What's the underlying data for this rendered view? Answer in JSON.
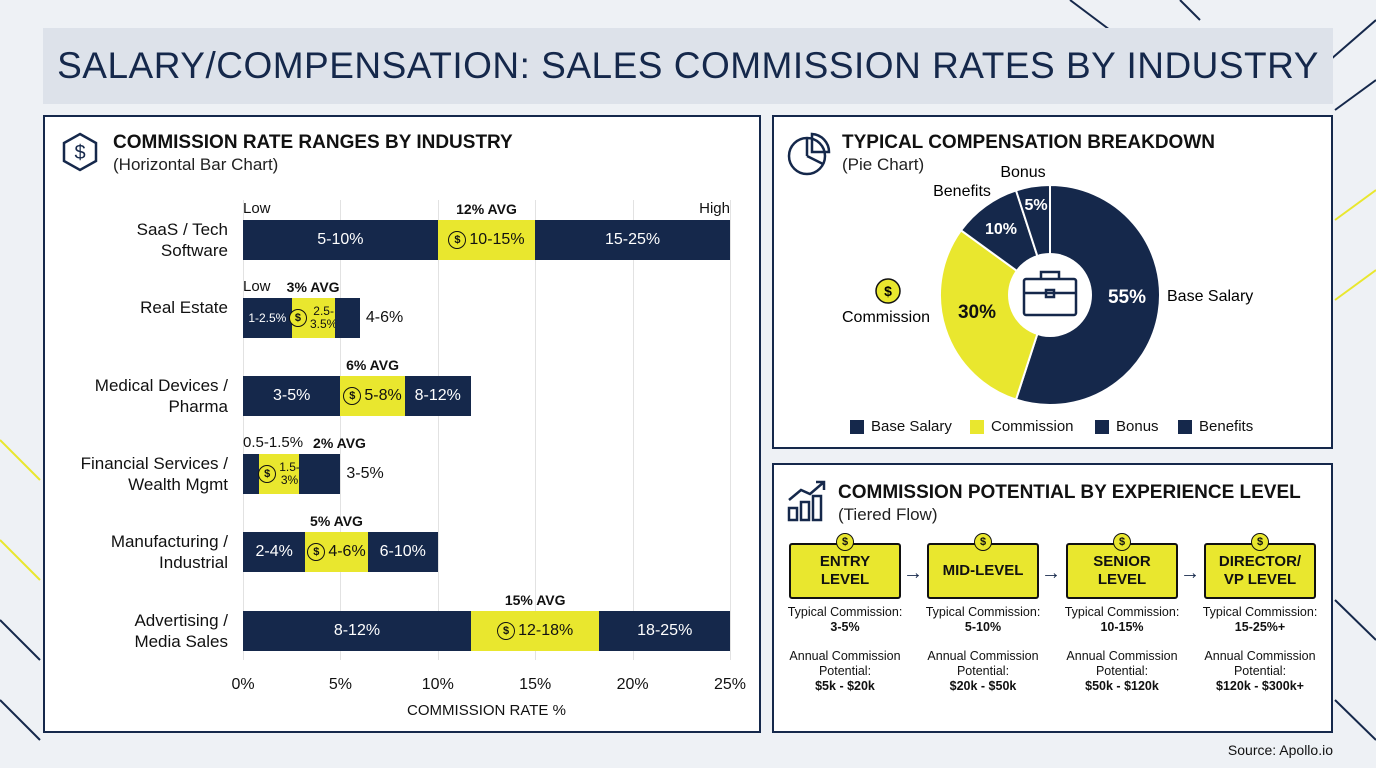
{
  "title": "SALARY/COMPENSATION: SALES COMMISSION RATES BY INDUSTRY",
  "bar_panel": {
    "title": "COMMISSION RATE RANGES BY INDUSTRY",
    "subtitle": "(Horizontal Bar Chart)",
    "xlabel": "COMMISSION RATE %",
    "low_label": "Low",
    "high_label": "High"
  },
  "pie_panel": {
    "title": "TYPICAL COMPENSATION BREAKDOWN",
    "subtitle": "(Pie Chart)"
  },
  "tier_panel": {
    "title": "COMMISSION POTENTIAL BY EXPERIENCE LEVEL",
    "subtitle": "(Tiered Flow)",
    "tiers": [
      {
        "name": "ENTRY\nLEVEL",
        "typical_label": "Typical Commission:",
        "typical": "3-5%",
        "annual_label": "Annual Commission Potential:",
        "annual": "$5k - $20k"
      },
      {
        "name": "MID-LEVEL",
        "typical_label": "Typical Commission:",
        "typical": "5-10%",
        "annual_label": "Annual Commission Potential:",
        "annual": "$20k - $50k"
      },
      {
        "name": "SENIOR\nLEVEL",
        "typical_label": "Typical Commission:",
        "typical": "10-15%",
        "annual_label": "Annual Commission Potential:",
        "annual": "$50k - $120k"
      },
      {
        "name": "DIRECTOR/\nVP LEVEL",
        "typical_label": "Typical Commission:",
        "typical": "15-25%+",
        "annual_label": "Annual Commission Potential:",
        "annual": "$120k - $300k+"
      }
    ]
  },
  "source": "Source: Apollo.io",
  "colors": {
    "navy": "#15284b",
    "yellow": "#e9e72e"
  },
  "chart_data": [
    {
      "type": "bar",
      "orientation": "horizontal",
      "stacked": true,
      "xlabel": "COMMISSION RATE %",
      "xlim": [
        0,
        25
      ],
      "xticks": [
        "0%",
        "5%",
        "10%",
        "15%",
        "20%",
        "25%"
      ],
      "grid": true,
      "categories": [
        "SaaS / Tech\nSoftware",
        "Real Estate",
        "Medical Devices /\nPharma",
        "Financial Services /\nWealth Mgmt",
        "Manufacturing /\nIndustrial",
        "Advertising /\nMedia Sales"
      ],
      "rows": [
        {
          "avg": "12% AVG",
          "top_left": "Low",
          "top_right": "High",
          "segments": [
            {
              "from": 0,
              "to": 10,
              "label": "5-10%",
              "tier": "low"
            },
            {
              "from": 10,
              "to": 15,
              "label": "10-15%",
              "tier": "avg"
            },
            {
              "from": 15,
              "to": 25,
              "label": "15-25%",
              "tier": "high"
            }
          ]
        },
        {
          "avg": "3% AVG",
          "top_left": "Low",
          "outside": "4-6%",
          "segments": [
            {
              "from": 0,
              "to": 2.5,
              "label": "1-2.5%",
              "tier": "low"
            },
            {
              "from": 2.5,
              "to": 4.7,
              "label": "2.5-\n3.5%",
              "tier": "avg"
            },
            {
              "from": 4.7,
              "to": 6,
              "label": "",
              "tier": "high"
            }
          ]
        },
        {
          "avg": "6% AVG",
          "segments": [
            {
              "from": 0,
              "to": 5,
              "label": "3-5%",
              "tier": "low"
            },
            {
              "from": 5,
              "to": 8.3,
              "label": "5-8%",
              "tier": "avg"
            },
            {
              "from": 8.3,
              "to": 11.7,
              "label": "8-12%",
              "tier": "high"
            }
          ]
        },
        {
          "avg": "2% AVG",
          "top_left": "0.5-1.5%",
          "outside": "3-5%",
          "segments": [
            {
              "from": 0,
              "to": 0.8,
              "label": "",
              "tier": "low"
            },
            {
              "from": 0.8,
              "to": 2.9,
              "label": "1.5-\n3%",
              "tier": "avg"
            },
            {
              "from": 2.9,
              "to": 5,
              "label": "",
              "tier": "high"
            }
          ]
        },
        {
          "avg": "5% AVG",
          "segments": [
            {
              "from": 0,
              "to": 3.2,
              "label": "2-4%",
              "tier": "low"
            },
            {
              "from": 3.2,
              "to": 6.4,
              "label": "4-6%",
              "tier": "avg"
            },
            {
              "from": 6.4,
              "to": 10,
              "label": "6-10%",
              "tier": "high"
            }
          ]
        },
        {
          "avg": "15% AVG",
          "segments": [
            {
              "from": 0,
              "to": 11.7,
              "label": "8-12%",
              "tier": "low"
            },
            {
              "from": 11.7,
              "to": 18.3,
              "label": "12-18%",
              "tier": "avg"
            },
            {
              "from": 18.3,
              "to": 25,
              "label": "18-25%",
              "tier": "high"
            }
          ]
        }
      ]
    },
    {
      "type": "pie",
      "donut": true,
      "slices": [
        {
          "name": "Base Salary",
          "value": 55,
          "label": "55%",
          "color": "#15284b"
        },
        {
          "name": "Commission",
          "value": 30,
          "label": "30%",
          "color": "#e9e72e"
        },
        {
          "name": "Benefits",
          "value": 10,
          "label": "10%",
          "color": "#15284b"
        },
        {
          "name": "Bonus",
          "value": 5,
          "label": "5%",
          "color": "#15284b"
        }
      ],
      "legend": [
        "Base Salary",
        "Commission",
        "Bonus",
        "Benefits"
      ],
      "legend_placement": "bottom"
    }
  ]
}
